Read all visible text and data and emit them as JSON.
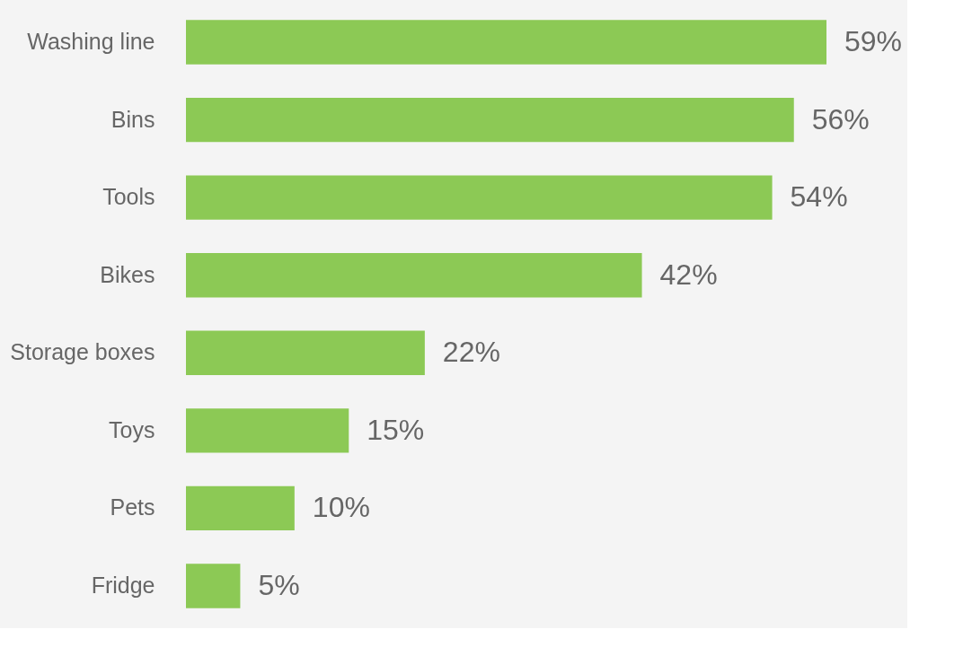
{
  "chart_data": {
    "type": "bar",
    "orientation": "horizontal",
    "categories": [
      "Washing line",
      "Bins",
      "Tools",
      "Bikes",
      "Storage boxes",
      "Toys",
      "Pets",
      "Fridge"
    ],
    "values": [
      59,
      56,
      54,
      42,
      22,
      15,
      10,
      5
    ],
    "value_labels": [
      "59%",
      "56%",
      "54%",
      "42%",
      "22%",
      "15%",
      "10%",
      "5%"
    ],
    "color": "#8cc955",
    "tick_labels": "y"
  }
}
